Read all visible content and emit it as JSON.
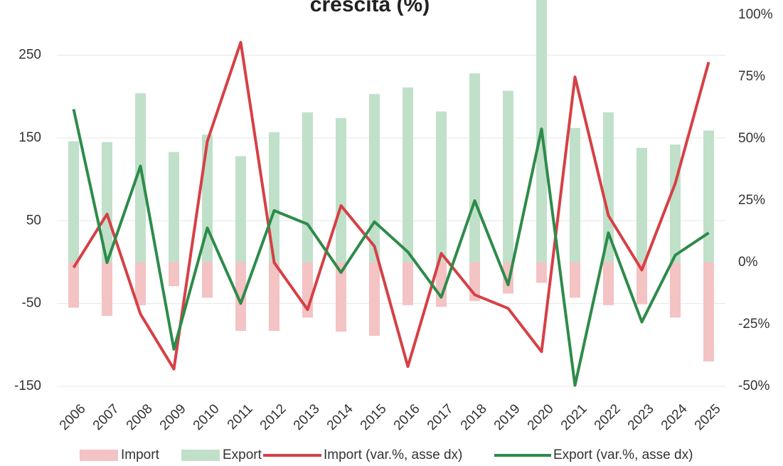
{
  "chart_data": {
    "type": "bar_line_dual",
    "title": "crescita (%)",
    "categories": [
      "2006",
      "2007",
      "2008",
      "2009",
      "2010",
      "2011",
      "2012",
      "2013",
      "2014",
      "2015",
      "2016",
      "2017",
      "2018",
      "2019",
      "2020",
      "2021",
      "2022",
      "2023",
      "2024",
      "2025"
    ],
    "series": [
      {
        "name": "Import",
        "kind": "bar",
        "color": "#f4c3c4",
        "values": [
          -55,
          -65,
          -52,
          -29,
          -43,
          -83,
          -83,
          -67,
          -84,
          -89,
          -52,
          -54,
          -47,
          -38,
          -25,
          -43,
          -52,
          -51,
          -67,
          -120
        ]
      },
      {
        "name": "Export",
        "kind": "bar",
        "color": "#c0e0ca",
        "values": [
          146,
          145,
          204,
          133,
          154,
          128,
          157,
          181,
          174,
          203,
          211,
          182,
          228,
          207,
          330,
          162,
          181,
          138,
          142,
          159
        ]
      },
      {
        "name": "Import (var.%, asse dx)",
        "kind": "line",
        "axis": "y2",
        "color": "#d64045",
        "values": [
          -2,
          19.6,
          -20.8,
          -43,
          49,
          89,
          0,
          -19,
          23,
          6.6,
          -42,
          3.7,
          -13,
          -18.5,
          -36,
          75,
          19,
          -3,
          32,
          81
        ]
      },
      {
        "name": "Export (var.%, asse dx)",
        "kind": "line",
        "axis": "y2",
        "color": "#2e8b4a",
        "values": [
          62,
          0,
          39,
          -35,
          14,
          -16.5,
          21,
          15.5,
          -4,
          16.5,
          4.3,
          -14,
          25,
          -9,
          54,
          -49.6,
          12,
          -24,
          3,
          12
        ]
      }
    ],
    "ylim": [
      -150,
      316.6
    ],
    "yticks": [
      -150,
      -50,
      50,
      150,
      250
    ],
    "y2lim": [
      -50,
      106.1
    ],
    "y2ticks": [
      {
        "value": -50,
        "label": "-50%"
      },
      {
        "value": -25,
        "label": "-25%"
      },
      {
        "value": 0,
        "label": "0%"
      },
      {
        "value": 25,
        "label": "25%"
      },
      {
        "value": 50,
        "label": "50%"
      },
      {
        "value": 75,
        "label": "75%"
      },
      {
        "value": 100,
        "label": "100%"
      }
    ],
    "grid": true,
    "legend": "bottom"
  }
}
